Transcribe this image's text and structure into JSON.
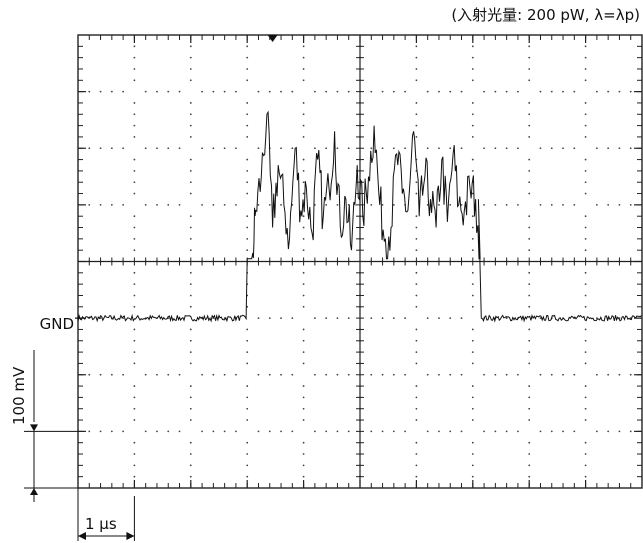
{
  "chart_data": {
    "type": "line",
    "title": "",
    "condition_label": "(入射光量: 200 pW, λ=λp)",
    "ground_label": "GND",
    "vertical_scale_label": "100 mV",
    "horizontal_scale_label": "1 μs",
    "x_unit": "μs",
    "y_unit": "mV",
    "xlim": [
      0,
      10
    ],
    "ylim": [
      -300,
      500
    ],
    "x_divisions": 10,
    "y_divisions": 8,
    "grid": true,
    "trigger_marker": true,
    "series": [
      {
        "baseline_mV": 0,
        "pulse_start_us": 3.0,
        "pulse_end_us": 7.1,
        "pulse_mean_mV": 220,
        "pulse_peak_mV": 360,
        "pulse_min_mV": 115,
        "x": [
          0,
          3.0,
          3.1,
          3.15,
          3.25,
          3.35,
          3.45,
          3.55,
          3.65,
          3.75,
          3.85,
          3.95,
          4.05,
          4.15,
          4.25,
          4.35,
          4.45,
          4.55,
          4.65,
          4.75,
          4.85,
          4.95,
          5.05,
          5.15,
          5.25,
          5.35,
          5.45,
          5.55,
          5.65,
          5.75,
          5.85,
          5.95,
          6.05,
          6.15,
          6.25,
          6.35,
          6.45,
          6.55,
          6.65,
          6.75,
          6.85,
          6.95,
          7.05,
          7.15,
          10
        ],
        "y": [
          0,
          0,
          115,
          190,
          250,
          360,
          160,
          270,
          200,
          140,
          300,
          190,
          230,
          150,
          280,
          180,
          230,
          330,
          160,
          210,
          120,
          270,
          180,
          250,
          340,
          200,
          140,
          160,
          290,
          220,
          190,
          330,
          180,
          250,
          210,
          160,
          280,
          170,
          290,
          200,
          190,
          230,
          210,
          0,
          0
        ]
      }
    ]
  }
}
